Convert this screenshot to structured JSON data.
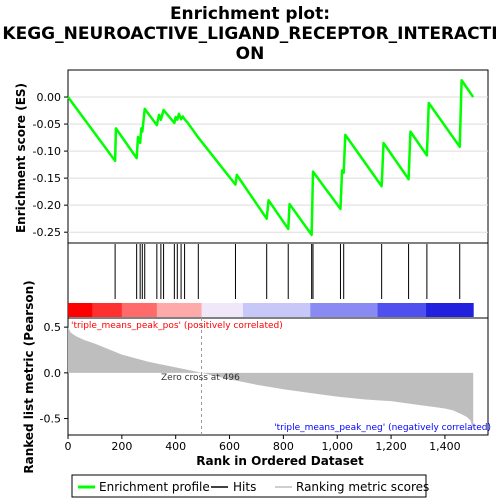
{
  "chart_data": {
    "type": "line",
    "title_lines": [
      "Enrichment plot:",
      "KEGG_NEUROACTIVE_LIGAND_RECEPTOR_INTERACTI",
      "ON"
    ],
    "colors": {
      "enrichment": "#00ff00",
      "hits": "#000000",
      "metric_fill": "#bebebe",
      "zero_cross": "#999999",
      "pos_label": "#ff0000",
      "neg_label": "#0000ff"
    },
    "top_panel": {
      "ylabel": "Enrichment score (ES)",
      "ylim": [
        -0.27,
        0.05
      ],
      "yticks": [
        0.0,
        -0.05,
        -0.1,
        -0.15,
        -0.2,
        -0.25
      ],
      "ytick_labels": [
        "0.00",
        "-0.05",
        "-0.10",
        "-0.15",
        "-0.20",
        "-0.25"
      ],
      "x": [
        0,
        175,
        178,
        255,
        260,
        268,
        272,
        276,
        280,
        285,
        330,
        338,
        345,
        355,
        395,
        400,
        406,
        412,
        420,
        426,
        433,
        442,
        484,
        622,
        627,
        738,
        745,
        818,
        823,
        905,
        910,
        1012,
        1018,
        1024,
        1030,
        1165,
        1172,
        1265,
        1272,
        1333,
        1340,
        1455,
        1462,
        1505
      ],
      "y": [
        0.0,
        -0.118,
        -0.058,
        -0.113,
        -0.074,
        -0.085,
        -0.058,
        -0.064,
        -0.046,
        -0.022,
        -0.052,
        -0.033,
        -0.042,
        -0.024,
        -0.048,
        -0.037,
        -0.042,
        -0.031,
        -0.041,
        -0.036,
        -0.041,
        -0.046,
        -0.075,
        -0.162,
        -0.144,
        -0.225,
        -0.191,
        -0.244,
        -0.198,
        -0.255,
        -0.138,
        -0.207,
        -0.136,
        -0.14,
        -0.07,
        -0.165,
        -0.085,
        -0.152,
        -0.064,
        -0.108,
        -0.011,
        -0.092,
        0.031,
        0.0
      ]
    },
    "hits": [
      175,
      255,
      268,
      276,
      285,
      330,
      345,
      355,
      395,
      406,
      420,
      433,
      484,
      622,
      738,
      818,
      905,
      910,
      1012,
      1024,
      1165,
      1265,
      1333,
      1455
    ],
    "bottom_panel": {
      "ylabel": "Ranked list metric (Pearson)",
      "ylim": [
        -0.68,
        0.6
      ],
      "yticks": [
        0.5,
        0.0,
        -0.5
      ],
      "ytick_labels": [
        "0.5",
        "0.0",
        "-0.5"
      ],
      "metric_x": [
        0,
        10,
        30,
        60,
        100,
        150,
        200,
        250,
        300,
        350,
        400,
        450,
        496,
        600,
        700,
        800,
        900,
        1000,
        1100,
        1200,
        1300,
        1350,
        1400,
        1430,
        1460,
        1480,
        1495,
        1505
      ],
      "metric_y": [
        0.5,
        0.44,
        0.4,
        0.36,
        0.32,
        0.26,
        0.2,
        0.16,
        0.12,
        0.09,
        0.06,
        0.03,
        0.0,
        -0.07,
        -0.13,
        -0.18,
        -0.22,
        -0.26,
        -0.29,
        -0.31,
        -0.35,
        -0.37,
        -0.39,
        -0.41,
        -0.45,
        -0.48,
        -0.52,
        -0.62
      ],
      "zero_cross_label": "Zero cross at 496",
      "zero_cross_x": 496,
      "pos_label": "'triple_means_peak_pos' (positively correlated)",
      "neg_label": "'triple_means_peak_neg' (negatively correlated)"
    },
    "xlabel": "Rank in Ordered Dataset",
    "xlim": [
      0,
      1560
    ],
    "xticks": [
      0,
      200,
      400,
      600,
      800,
      1000,
      1200,
      1400
    ],
    "xtick_labels": [
      "0",
      "200",
      "400",
      "600",
      "800",
      "1,000",
      "1,200",
      "1,400"
    ],
    "heat_bar": {
      "x_max": 1505,
      "stops": [
        {
          "at": 0,
          "color": "#ff0000"
        },
        {
          "at": 90,
          "color": "#ff3030"
        },
        {
          "at": 200,
          "color": "#ff6a6a"
        },
        {
          "at": 330,
          "color": "#ffaaaa"
        },
        {
          "at": 496,
          "color": "#f0e8f8"
        },
        {
          "at": 650,
          "color": "#c8c8f8"
        },
        {
          "at": 900,
          "color": "#8a8af5"
        },
        {
          "at": 1150,
          "color": "#5050ee"
        },
        {
          "at": 1330,
          "color": "#2020dd"
        },
        {
          "at": 1505,
          "color": "#0000bb"
        }
      ]
    },
    "legend": [
      "Enrichment profile",
      "Hits",
      "Ranking metric scores"
    ]
  }
}
